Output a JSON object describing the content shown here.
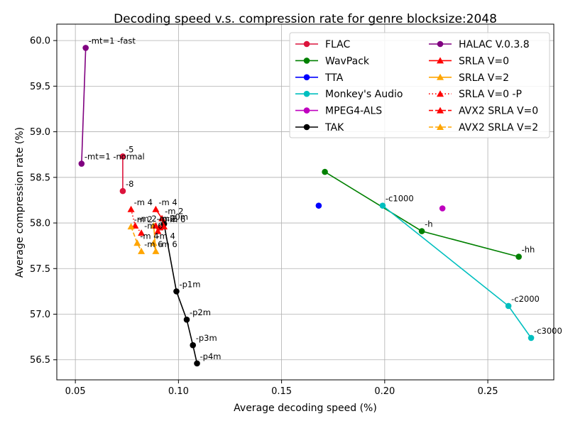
{
  "chart_data": {
    "type": "line",
    "title": "Decoding speed v.s. compression rate for genre blocksize:2048",
    "xlabel": "Average decoding speed (%)",
    "ylabel": "Average compression rate (%)",
    "xlim": [
      0.041,
      0.282
    ],
    "ylim": [
      56.28,
      60.18
    ],
    "xticks": [
      0.05,
      0.1,
      0.15,
      0.2,
      0.25
    ],
    "xtick_labels": [
      "0.05",
      "0.10",
      "0.15",
      "0.20",
      "0.25"
    ],
    "yticks": [
      56.5,
      57.0,
      57.5,
      58.0,
      58.5,
      59.0,
      59.5,
      60.0
    ],
    "ytick_labels": [
      "56.5",
      "57.0",
      "57.5",
      "58.0",
      "58.5",
      "59.0",
      "59.5",
      "60.0"
    ],
    "grid": true,
    "legend_position": "top-right",
    "legend_columns": 2,
    "series": [
      {
        "name": "FLAC",
        "color": "#dc143c",
        "marker": "circle",
        "linestyle": "solid",
        "points": [
          {
            "x": 0.073,
            "y": 58.73,
            "label": "-5"
          },
          {
            "x": 0.073,
            "y": 58.35,
            "label": "-8"
          }
        ]
      },
      {
        "name": "WavPack",
        "color": "#008000",
        "marker": "circle",
        "linestyle": "solid",
        "points": [
          {
            "x": 0.171,
            "y": 58.56,
            "label": ""
          },
          {
            "x": 0.218,
            "y": 57.91,
            "label": "-h"
          },
          {
            "x": 0.265,
            "y": 57.63,
            "label": "-hh"
          }
        ]
      },
      {
        "name": "TTA",
        "color": "#0000ff",
        "marker": "circle",
        "linestyle": "none",
        "points": [
          {
            "x": 0.168,
            "y": 58.19,
            "label": ""
          }
        ]
      },
      {
        "name": "Monkey's Audio",
        "color": "#00bfbf",
        "marker": "circle",
        "linestyle": "solid",
        "points": [
          {
            "x": 0.199,
            "y": 58.19,
            "label": "-c1000"
          },
          {
            "x": 0.26,
            "y": 57.09,
            "label": "-c2000"
          },
          {
            "x": 0.271,
            "y": 56.74,
            "label": "-c3000"
          }
        ]
      },
      {
        "name": "MPEG4-ALS",
        "color": "#bf00bf",
        "marker": "circle",
        "linestyle": "none",
        "points": [
          {
            "x": 0.228,
            "y": 58.16,
            "label": ""
          }
        ]
      },
      {
        "name": "TAK",
        "color": "#000000",
        "marker": "circle",
        "linestyle": "solid",
        "points": [
          {
            "x": 0.093,
            "y": 57.99,
            "label": "-p0m"
          },
          {
            "x": 0.099,
            "y": 57.25,
            "label": "-p1m"
          },
          {
            "x": 0.104,
            "y": 56.94,
            "label": "-p2m"
          },
          {
            "x": 0.107,
            "y": 56.66,
            "label": "-p3m"
          },
          {
            "x": 0.109,
            "y": 56.46,
            "label": "-p4m"
          }
        ]
      },
      {
        "name": "HALAC V.0.3.8",
        "color": "#800080",
        "marker": "circle",
        "linestyle": "solid",
        "points": [
          {
            "x": 0.055,
            "y": 59.92,
            "label": "-mt=1 -fast"
          },
          {
            "x": 0.053,
            "y": 58.65,
            "label": "-mt=1 -normal"
          }
        ]
      },
      {
        "name": "SRLA V=0",
        "color": "#ff0000",
        "marker": "triangle",
        "linestyle": "solid",
        "points": [
          {
            "x": 0.089,
            "y": 58.15,
            "label": "-m 4"
          },
          {
            "x": 0.092,
            "y": 58.05,
            "label": "-m 2"
          },
          {
            "x": 0.093,
            "y": 57.96,
            "label": "-m 6"
          }
        ]
      },
      {
        "name": "SRLA V=2",
        "color": "#ffa500",
        "marker": "triangle",
        "linestyle": "solid",
        "points": [
          {
            "x": 0.088,
            "y": 57.78,
            "label": "-m 4"
          },
          {
            "x": 0.089,
            "y": 57.69,
            "label": "-m 6"
          },
          {
            "x": 0.088,
            "y": 57.97,
            "label": "-m 2"
          }
        ]
      },
      {
        "name": "SRLA V=0 -P",
        "color": "#ff0000",
        "marker": "triangle",
        "linestyle": "dotted",
        "points": [
          {
            "x": 0.077,
            "y": 58.15,
            "label": "-m 4"
          },
          {
            "x": 0.079,
            "y": 57.97,
            "label": "-m 2"
          },
          {
            "x": 0.082,
            "y": 57.89,
            "label": "-m 6"
          }
        ]
      },
      {
        "name": "AVX2 SRLA V=0",
        "color": "#ff0000",
        "marker": "triangle",
        "linestyle": "dashed",
        "points": [
          {
            "x": 0.089,
            "y": 57.97,
            "label": "-m 2"
          },
          {
            "x": 0.09,
            "y": 57.91,
            "label": ""
          },
          {
            "x": 0.091,
            "y": 57.95,
            "label": ""
          }
        ]
      },
      {
        "name": "AVX2 SRLA V=2",
        "color": "#ffa500",
        "marker": "triangle",
        "linestyle": "dashed",
        "points": [
          {
            "x": 0.077,
            "y": 57.96,
            "label": "-m 2"
          },
          {
            "x": 0.08,
            "y": 57.78,
            "label": "-m 4"
          },
          {
            "x": 0.082,
            "y": 57.69,
            "label": "-m 6"
          }
        ]
      }
    ]
  }
}
